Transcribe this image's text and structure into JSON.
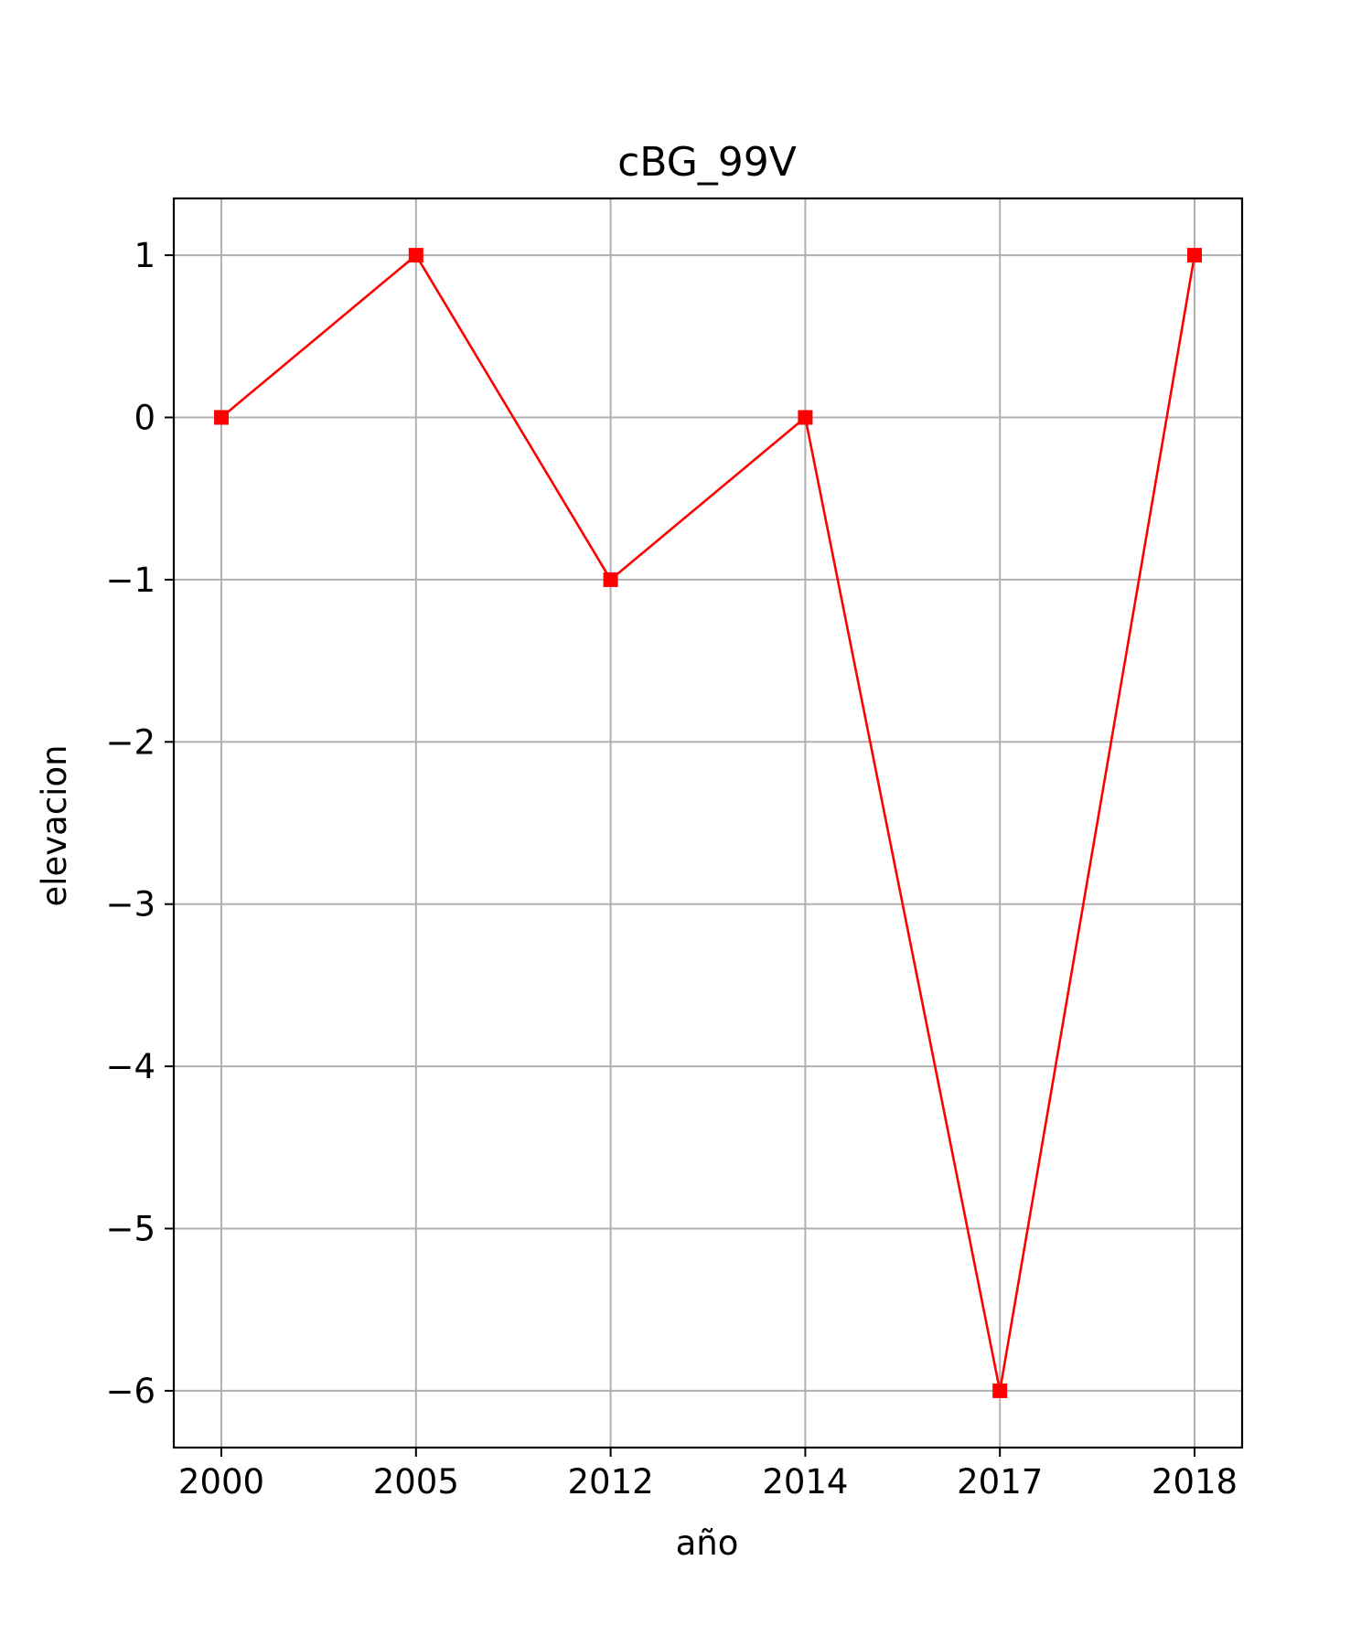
{
  "chart_data": {
    "type": "line",
    "title": "cBG_99V",
    "xlabel": "año",
    "ylabel": "elevacion",
    "categories": [
      "2000",
      "2005",
      "2012",
      "2014",
      "2017",
      "2018"
    ],
    "series": [
      {
        "values": [
          0,
          1,
          -1,
          0,
          -6,
          1
        ],
        "color": "#ff0000",
        "marker": "square"
      }
    ],
    "y_ticks": [
      1,
      0,
      -1,
      -2,
      -3,
      -4,
      -5,
      -6
    ],
    "y_tick_labels": [
      "1",
      "0",
      "−1",
      "−2",
      "−3",
      "−4",
      "−5",
      "−6"
    ],
    "ylim": [
      -6.35,
      1.35
    ],
    "grid": true,
    "legend": "none",
    "colors": {
      "line": "#ff0000",
      "grid": "#b0b0b0",
      "frame": "#000000"
    }
  }
}
